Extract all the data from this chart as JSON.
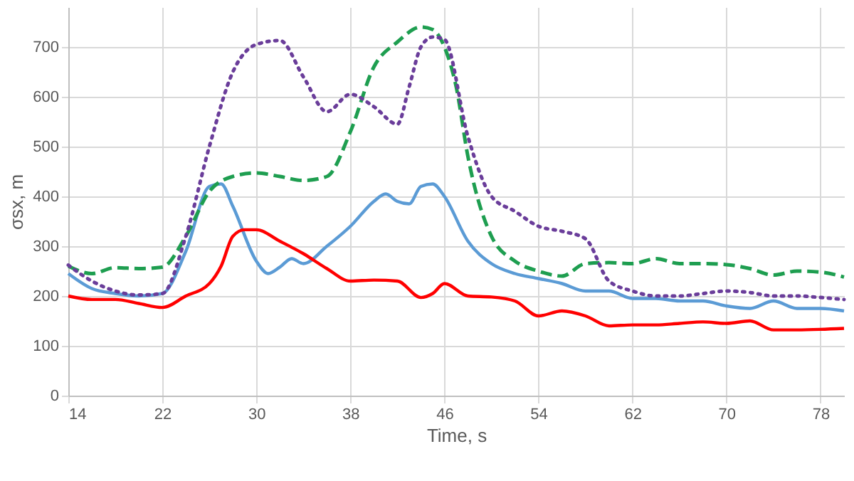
{
  "chart_data": {
    "type": "line",
    "xlabel": "Time, s",
    "ylabel": "σsx, m",
    "xlim": [
      14,
      80
    ],
    "xticks": [
      14,
      22,
      30,
      38,
      46,
      54,
      62,
      70,
      78
    ],
    "ylim": [
      0,
      780
    ],
    "yticks": [
      0,
      100,
      200,
      300,
      400,
      500,
      600,
      700
    ],
    "grid": true,
    "marker": "none",
    "series": [
      {
        "color": "#5b9bd5",
        "line_style": "solid",
        "x": [
          14,
          16,
          18,
          20,
          22,
          24,
          26,
          27,
          28,
          30,
          31,
          32,
          33,
          34,
          36,
          38,
          40,
          41,
          42,
          43,
          44,
          45,
          46,
          48,
          50,
          52,
          54,
          56,
          58,
          60,
          62,
          64,
          66,
          68,
          70,
          72,
          74,
          76,
          78,
          80
        ],
        "values": [
          245,
          215,
          205,
          200,
          205,
          290,
          420,
          425,
          380,
          270,
          245,
          258,
          275,
          265,
          300,
          340,
          390,
          405,
          390,
          385,
          420,
          425,
          400,
          310,
          265,
          245,
          235,
          225,
          210,
          210,
          195,
          195,
          190,
          190,
          180,
          175,
          190,
          175,
          175,
          170
        ]
      },
      {
        "color": "#1e9e50",
        "line_style": "dashed",
        "x": [
          14,
          16,
          18,
          20,
          22,
          24,
          26,
          28,
          30,
          32,
          34,
          36,
          38,
          40,
          42,
          44,
          45,
          46,
          47,
          48,
          50,
          52,
          54,
          56,
          58,
          60,
          62,
          64,
          66,
          68,
          70,
          72,
          74,
          76,
          78,
          80
        ],
        "values": [
          260,
          245,
          257,
          255,
          258,
          320,
          410,
          440,
          447,
          440,
          432,
          440,
          530,
          660,
          710,
          740,
          735,
          700,
          620,
          480,
          320,
          270,
          250,
          240,
          265,
          267,
          265,
          275,
          265,
          265,
          263,
          255,
          242,
          250,
          248,
          238
        ]
      },
      {
        "color": "#6a3d9a",
        "line_style": "dotted",
        "x": [
          14,
          16,
          18,
          20,
          22,
          24,
          26,
          28,
          30,
          32,
          34,
          36,
          38,
          40,
          42,
          43,
          44,
          45,
          46,
          48,
          50,
          52,
          54,
          56,
          58,
          60,
          62,
          64,
          66,
          68,
          70,
          72,
          74,
          76,
          78,
          80
        ],
        "values": [
          262,
          230,
          210,
          202,
          205,
          320,
          500,
          650,
          705,
          713,
          640,
          570,
          605,
          580,
          545,
          620,
          700,
          720,
          715,
          520,
          400,
          370,
          340,
          330,
          315,
          230,
          210,
          200,
          200,
          205,
          210,
          207,
          200,
          200,
          197,
          193
        ]
      },
      {
        "color": "#ff0000",
        "line_style": "solid",
        "x": [
          14,
          16,
          18,
          20,
          22,
          24,
          26,
          27,
          28,
          29,
          30,
          32,
          34,
          36,
          38,
          40,
          42,
          44,
          45,
          46,
          48,
          50,
          52,
          54,
          56,
          58,
          60,
          62,
          64,
          66,
          68,
          70,
          72,
          74,
          76,
          78,
          80
        ],
        "values": [
          200,
          193,
          193,
          185,
          177,
          200,
          225,
          260,
          320,
          333,
          333,
          310,
          285,
          255,
          230,
          232,
          230,
          197,
          205,
          225,
          200,
          198,
          190,
          160,
          170,
          160,
          140,
          142,
          142,
          145,
          148,
          145,
          150,
          132,
          132,
          133,
          135
        ]
      }
    ]
  }
}
